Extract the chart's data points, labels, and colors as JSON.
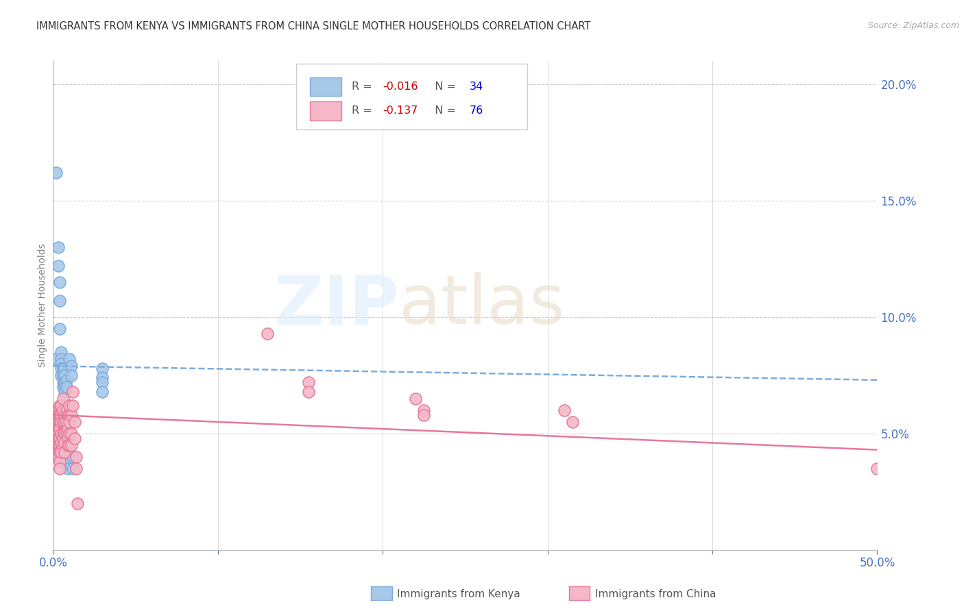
{
  "title": "IMMIGRANTS FROM KENYA VS IMMIGRANTS FROM CHINA SINGLE MOTHER HOUSEHOLDS CORRELATION CHART",
  "source": "Source: ZipAtlas.com",
  "ylabel": "Single Mother Households",
  "xlim": [
    0.0,
    0.5
  ],
  "ylim": [
    0.0,
    0.21
  ],
  "xticks": [
    0.0,
    0.1,
    0.2,
    0.3,
    0.4,
    0.5
  ],
  "yticks": [
    0.0,
    0.05,
    0.1,
    0.15,
    0.2
  ],
  "xticklabels": [
    "0.0%",
    "",
    "",
    "",
    "",
    "50.0%"
  ],
  "background_color": "#ffffff",
  "grid_color": "#cccccc",
  "axis_color": "#4472c4",
  "kenya_color": "#a8c8e8",
  "china_color": "#f4b8c8",
  "kenya_edge_color": "#7aace0",
  "china_edge_color": "#e87898",
  "kenya_line_color": "#7aace0",
  "china_line_color": "#e87898",
  "kenya_r": -0.016,
  "kenya_n": 34,
  "china_r": -0.137,
  "china_n": 76,
  "kenya_trendline": [
    0.0,
    0.079,
    0.5,
    0.073
  ],
  "china_trendline": [
    0.0,
    0.058,
    0.5,
    0.043
  ],
  "kenya_points": [
    [
      0.001,
      0.082
    ],
    [
      0.002,
      0.162
    ],
    [
      0.003,
      0.13
    ],
    [
      0.003,
      0.122
    ],
    [
      0.004,
      0.115
    ],
    [
      0.004,
      0.107
    ],
    [
      0.004,
      0.095
    ],
    [
      0.005,
      0.085
    ],
    [
      0.005,
      0.082
    ],
    [
      0.005,
      0.08
    ],
    [
      0.005,
      0.078
    ],
    [
      0.005,
      0.075
    ],
    [
      0.006,
      0.078
    ],
    [
      0.006,
      0.075
    ],
    [
      0.006,
      0.072
    ],
    [
      0.006,
      0.07
    ],
    [
      0.007,
      0.078
    ],
    [
      0.007,
      0.075
    ],
    [
      0.007,
      0.072
    ],
    [
      0.007,
      0.07
    ],
    [
      0.007,
      0.068
    ],
    [
      0.008,
      0.073
    ],
    [
      0.008,
      0.07
    ],
    [
      0.008,
      0.038
    ],
    [
      0.009,
      0.035
    ],
    [
      0.01,
      0.082
    ],
    [
      0.011,
      0.079
    ],
    [
      0.011,
      0.075
    ],
    [
      0.012,
      0.035
    ],
    [
      0.012,
      0.04
    ],
    [
      0.03,
      0.078
    ],
    [
      0.03,
      0.074
    ],
    [
      0.03,
      0.072
    ],
    [
      0.03,
      0.068
    ]
  ],
  "china_points": [
    [
      0.001,
      0.055
    ],
    [
      0.001,
      0.052
    ],
    [
      0.001,
      0.05
    ],
    [
      0.002,
      0.058
    ],
    [
      0.002,
      0.055
    ],
    [
      0.002,
      0.052
    ],
    [
      0.002,
      0.05
    ],
    [
      0.002,
      0.048
    ],
    [
      0.002,
      0.045
    ],
    [
      0.002,
      0.042
    ],
    [
      0.003,
      0.06
    ],
    [
      0.003,
      0.058
    ],
    [
      0.003,
      0.055
    ],
    [
      0.003,
      0.052
    ],
    [
      0.003,
      0.05
    ],
    [
      0.003,
      0.048
    ],
    [
      0.003,
      0.045
    ],
    [
      0.003,
      0.042
    ],
    [
      0.003,
      0.04
    ],
    [
      0.004,
      0.062
    ],
    [
      0.004,
      0.058
    ],
    [
      0.004,
      0.055
    ],
    [
      0.004,
      0.052
    ],
    [
      0.004,
      0.048
    ],
    [
      0.004,
      0.045
    ],
    [
      0.004,
      0.042
    ],
    [
      0.004,
      0.038
    ],
    [
      0.004,
      0.035
    ],
    [
      0.005,
      0.062
    ],
    [
      0.005,
      0.058
    ],
    [
      0.005,
      0.055
    ],
    [
      0.005,
      0.05
    ],
    [
      0.005,
      0.046
    ],
    [
      0.005,
      0.042
    ],
    [
      0.006,
      0.065
    ],
    [
      0.006,
      0.06
    ],
    [
      0.006,
      0.055
    ],
    [
      0.006,
      0.05
    ],
    [
      0.006,
      0.048
    ],
    [
      0.006,
      0.045
    ],
    [
      0.007,
      0.058
    ],
    [
      0.007,
      0.055
    ],
    [
      0.007,
      0.05
    ],
    [
      0.007,
      0.046
    ],
    [
      0.007,
      0.042
    ],
    [
      0.008,
      0.06
    ],
    [
      0.008,
      0.055
    ],
    [
      0.008,
      0.05
    ],
    [
      0.009,
      0.058
    ],
    [
      0.009,
      0.052
    ],
    [
      0.009,
      0.048
    ],
    [
      0.009,
      0.045
    ],
    [
      0.01,
      0.062
    ],
    [
      0.01,
      0.058
    ],
    [
      0.01,
      0.055
    ],
    [
      0.01,
      0.05
    ],
    [
      0.01,
      0.045
    ],
    [
      0.011,
      0.058
    ],
    [
      0.011,
      0.05
    ],
    [
      0.011,
      0.045
    ],
    [
      0.012,
      0.068
    ],
    [
      0.012,
      0.062
    ],
    [
      0.013,
      0.055
    ],
    [
      0.013,
      0.048
    ],
    [
      0.014,
      0.04
    ],
    [
      0.014,
      0.035
    ],
    [
      0.015,
      0.02
    ],
    [
      0.13,
      0.093
    ],
    [
      0.155,
      0.072
    ],
    [
      0.155,
      0.068
    ],
    [
      0.22,
      0.065
    ],
    [
      0.225,
      0.06
    ],
    [
      0.225,
      0.058
    ],
    [
      0.31,
      0.06
    ],
    [
      0.315,
      0.055
    ],
    [
      0.5,
      0.035
    ]
  ]
}
